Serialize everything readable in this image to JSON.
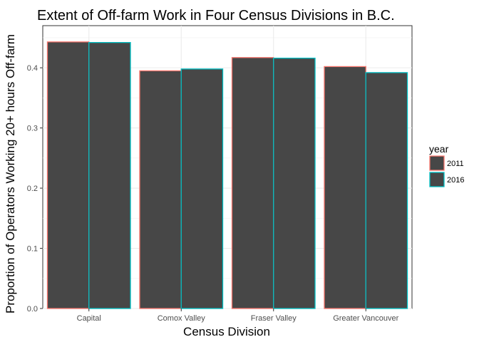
{
  "chart_data": {
    "type": "bar",
    "title": "Extent of Off-farm Work in Four Census Divisions in B.C.",
    "xlabel": "Census Division",
    "ylabel": "Proportion of Operators Working 20+ hours Off-farm",
    "categories": [
      "Capital",
      "Comox Valley",
      "Fraser Valley",
      "Greater Vancouver"
    ],
    "series": [
      {
        "name": "2011",
        "values": [
          0.443,
          0.395,
          0.417,
          0.402
        ],
        "outline_color": "#F8766D"
      },
      {
        "name": "2016",
        "values": [
          0.442,
          0.398,
          0.416,
          0.392
        ],
        "outline_color": "#00BFC4"
      }
    ],
    "bar_fill": "#474747",
    "ylim": [
      0,
      0.47
    ],
    "yticks": [
      0.0,
      0.1,
      0.2,
      0.3,
      0.4
    ],
    "ytick_labels": [
      "0.0",
      "0.1",
      "0.2",
      "0.3",
      "0.4"
    ],
    "grid": true,
    "legend": {
      "title": "year",
      "position": "right"
    }
  }
}
